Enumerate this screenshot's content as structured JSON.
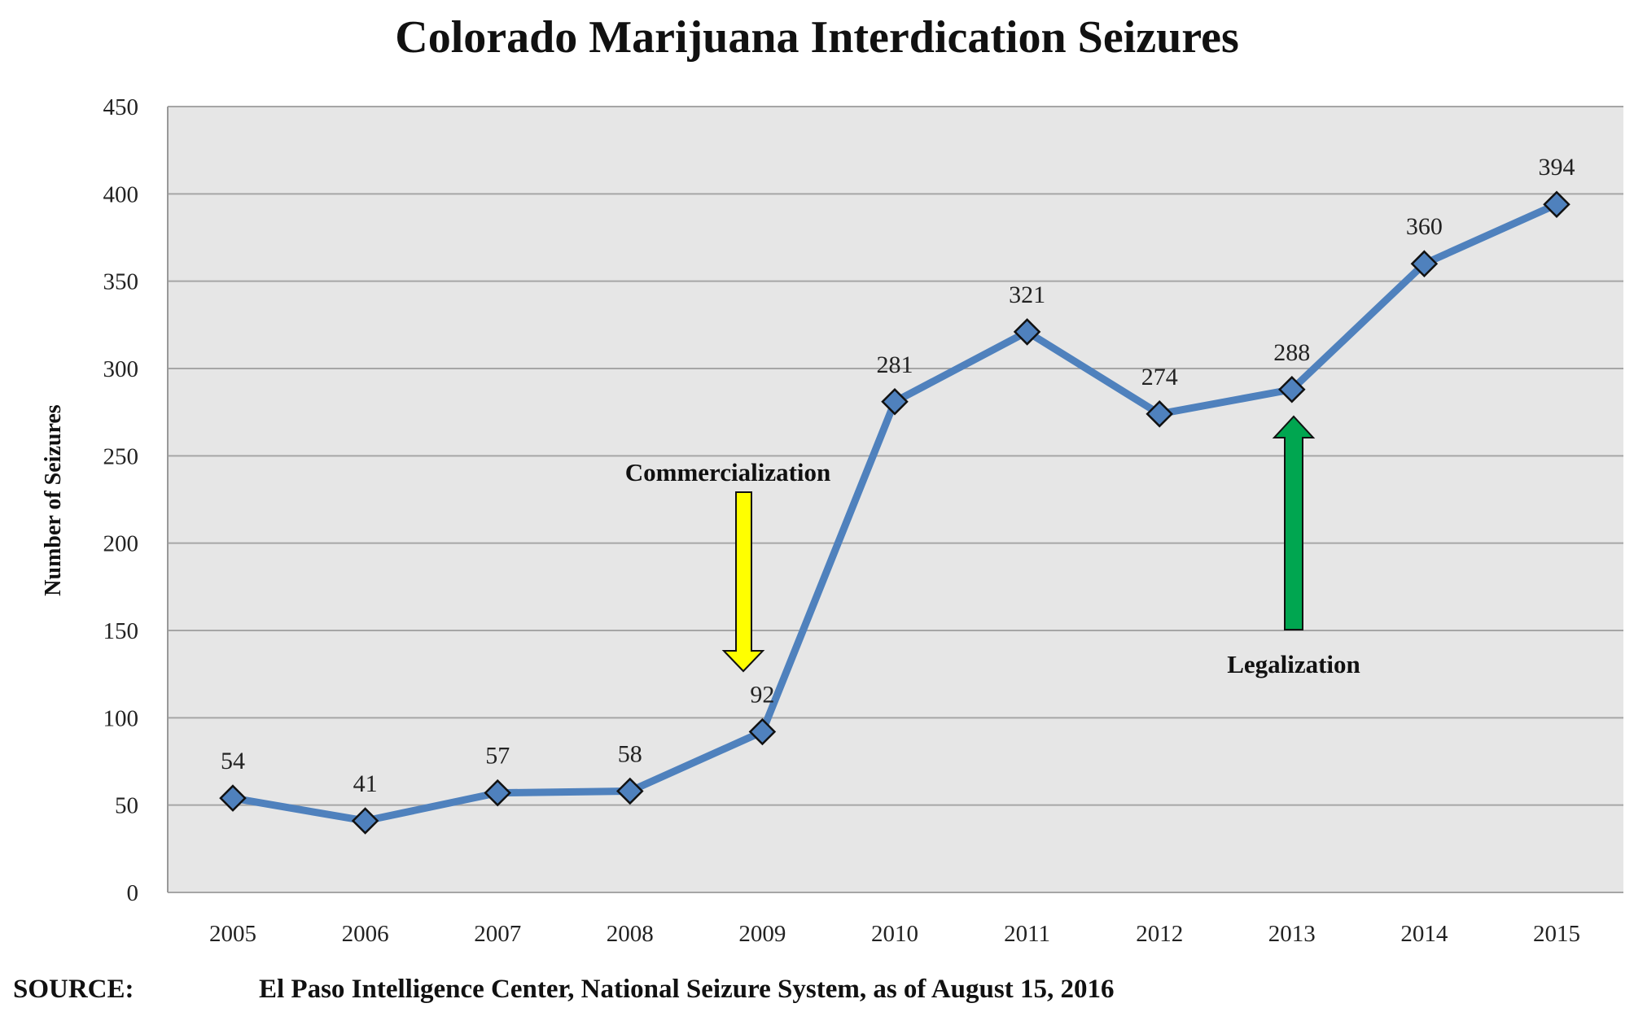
{
  "chart_data": {
    "type": "line",
    "title": "Colorado Marijuana Interdication Seizures",
    "xlabel": "",
    "ylabel": "Number of Seizures",
    "categories": [
      "2005",
      "2006",
      "2007",
      "2008",
      "2009",
      "2010",
      "2011",
      "2012",
      "2013",
      "2014",
      "2015"
    ],
    "series": [
      {
        "name": "Seizures",
        "values": [
          54,
          41,
          57,
          58,
          92,
          281,
          321,
          274,
          288,
          360,
          394
        ]
      }
    ],
    "ylim": [
      0,
      450
    ],
    "yticks": [
      0,
      50,
      100,
      150,
      200,
      250,
      300,
      350,
      400,
      450
    ],
    "grid": true,
    "legend": "none",
    "annotations": [
      {
        "text": "Commercialization",
        "year": "2009",
        "arrow": "down",
        "color": "#ffff00"
      },
      {
        "text": "Legalization",
        "year": "2013",
        "arrow": "up",
        "color": "#00a650"
      }
    ],
    "colors": {
      "line": "#4f81bd",
      "marker": "#4f81bd",
      "plot_bg": "#e6e6e6",
      "grid": "#a6a6a6"
    }
  },
  "source": {
    "label": "SOURCE:",
    "text": "El Paso Intelligence Center, National Seizure System, as of August 15, 2016"
  }
}
